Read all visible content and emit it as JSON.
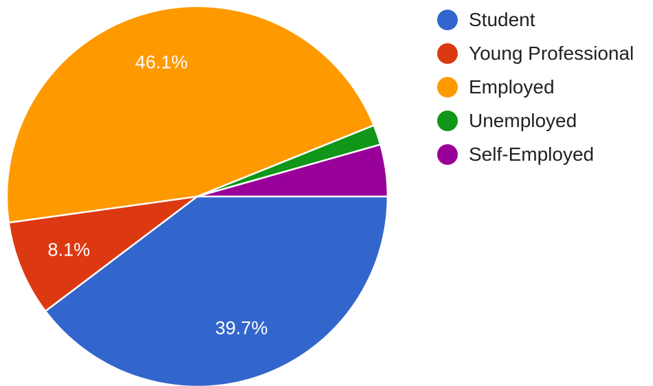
{
  "chart_data": {
    "type": "pie",
    "slices": [
      {
        "label": "Student",
        "value": 39.7,
        "color": "#3366cc",
        "display_label": "39.7%"
      },
      {
        "label": "Young Professional",
        "value": 8.1,
        "color": "#dc3912",
        "display_label": "8.1%"
      },
      {
        "label": "Employed",
        "value": 46.1,
        "color": "#ff9900",
        "display_label": "46.1%"
      },
      {
        "label": "Unemployed",
        "value": 1.7,
        "color": "#109618",
        "display_label": ""
      },
      {
        "label": "Self-Employed",
        "value": 4.4,
        "color": "#990099",
        "display_label": ""
      }
    ],
    "start_angle_deg": 0,
    "direction": "clockwise",
    "legend": "right"
  }
}
